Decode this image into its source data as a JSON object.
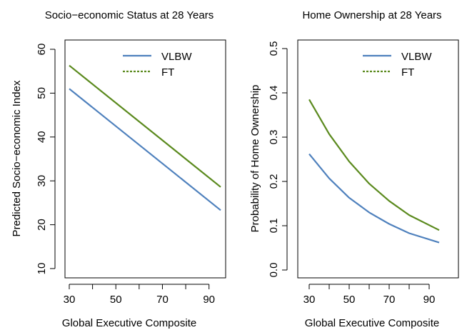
{
  "colors": {
    "vlbw": "#4f81bd",
    "ft": "#5b8a1e",
    "axis": "#000000"
  },
  "chart_data": [
    {
      "type": "line",
      "title": "Socio−economic Status at 28 Years",
      "xlabel": "Global Executive Composite",
      "ylabel": "Predicted Socio−economic Index",
      "xlim": [
        30,
        95
      ],
      "ylim": [
        10,
        60
      ],
      "xticks": [
        "30",
        "50",
        "70",
        "90"
      ],
      "yticks": [
        "10",
        "20",
        "30",
        "40",
        "50",
        "60"
      ],
      "grid": false,
      "legend": "top-right",
      "series": [
        {
          "name": "VLBW",
          "style": "solid",
          "x": [
            30,
            95
          ],
          "y": [
            51.0,
            23.3
          ]
        },
        {
          "name": "FT",
          "style": "dashed",
          "x": [
            30,
            95
          ],
          "y": [
            56.3,
            28.6
          ]
        }
      ]
    },
    {
      "type": "line",
      "title": "Home Ownership at 28 Years",
      "xlabel": "Global Executive Composite",
      "ylabel": "Probability of Home Ownership",
      "xlim": [
        30,
        95
      ],
      "ylim": [
        0.0,
        0.5
      ],
      "xticks": [
        "30",
        "50",
        "70",
        "90"
      ],
      "yticks": [
        "0.0",
        "0.1",
        "0.2",
        "0.3",
        "0.4",
        "0.5"
      ],
      "grid": false,
      "legend": "top-right",
      "series": [
        {
          "name": "VLBW",
          "style": "solid",
          "x": [
            30,
            40,
            50,
            60,
            70,
            80,
            95
          ],
          "y": [
            0.262,
            0.207,
            0.163,
            0.13,
            0.104,
            0.083,
            0.062
          ]
        },
        {
          "name": "FT",
          "style": "dashed",
          "x": [
            30,
            40,
            50,
            60,
            70,
            80,
            95
          ],
          "y": [
            0.385,
            0.307,
            0.245,
            0.195,
            0.156,
            0.124,
            0.09
          ]
        }
      ]
    }
  ]
}
